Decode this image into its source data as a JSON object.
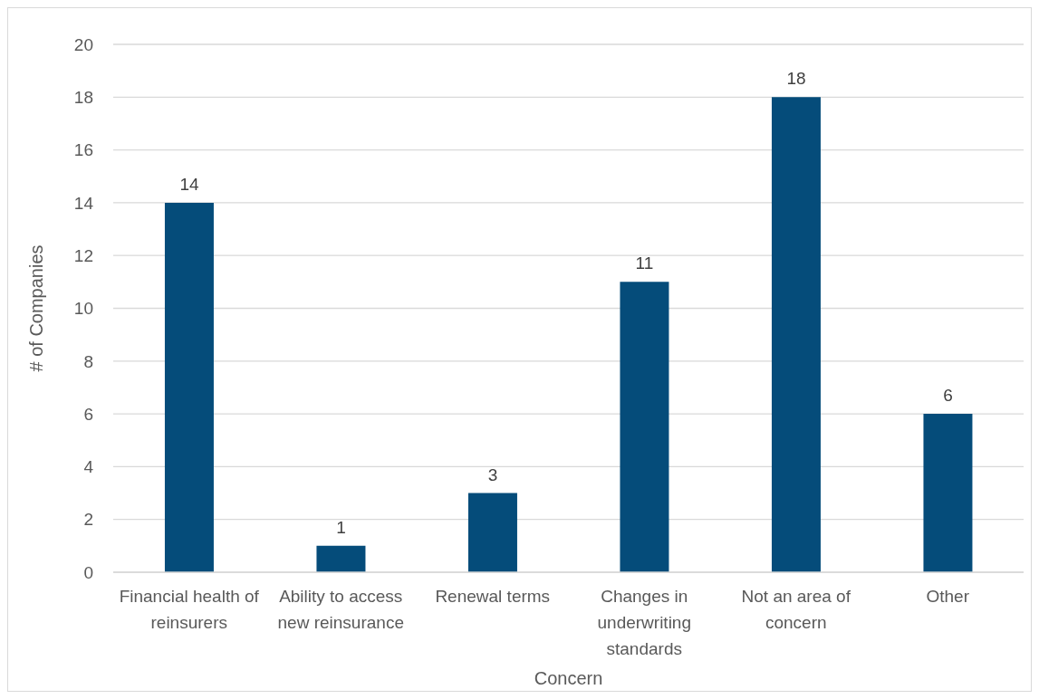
{
  "chart_data": {
    "type": "bar",
    "xlabel": "Concern",
    "ylabel": "# of Companies",
    "categories": [
      "Financial health of reinsurers",
      "Ability to access new reinsurance",
      "Renewal terms",
      "Changes in underwriting standards",
      "Not an area of concern",
      "Other"
    ],
    "values": [
      14,
      1,
      3,
      11,
      18,
      6
    ],
    "color": "#054c7a",
    "ylim": [
      0,
      20
    ],
    "yticks": [
      0,
      2,
      4,
      6,
      8,
      10,
      12,
      14,
      16,
      18,
      20
    ],
    "grid": "y",
    "data_labels": true
  }
}
